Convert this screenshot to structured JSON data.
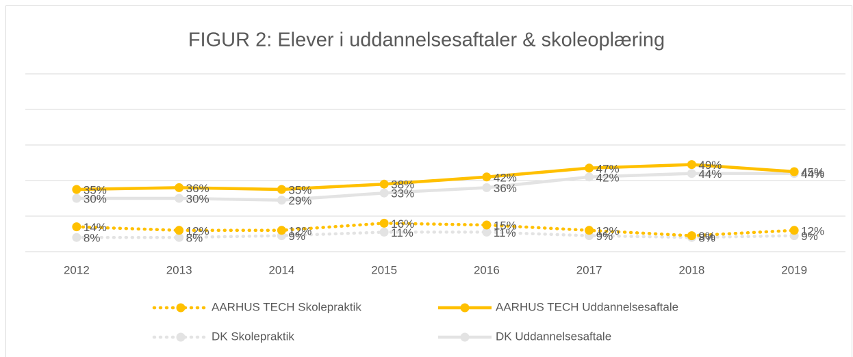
{
  "chart_data": {
    "type": "line",
    "title": "FIGUR 2: Elever i uddannelsesaftaler & skoleoplæring",
    "categories": [
      "2012",
      "2013",
      "2014",
      "2015",
      "2016",
      "2017",
      "2018",
      "2019"
    ],
    "ylim": [
      0,
      100
    ],
    "yticks": [
      0,
      20,
      40,
      60,
      80,
      100
    ],
    "grid": true,
    "series": [
      {
        "name": "AARHUS TECH Skolepraktik",
        "color": "#FFC000",
        "style": "dotted",
        "values": [
          14,
          12,
          12,
          16,
          15,
          12,
          9,
          12
        ],
        "value_labels": [
          "14%",
          "12%",
          "12%",
          "16%",
          "15%",
          "12%",
          "9%",
          "12%"
        ]
      },
      {
        "name": "AARHUS TECH Uddannelsesaftale",
        "color": "#FFC000",
        "style": "solid",
        "values": [
          35,
          36,
          35,
          38,
          42,
          47,
          49,
          45
        ],
        "value_labels": [
          "35%",
          "36%",
          "35%",
          "38%",
          "42%",
          "47%",
          "49%",
          "45%"
        ]
      },
      {
        "name": "DK Skolepraktik",
        "color": "#E3E3E3",
        "style": "dotted",
        "values": [
          8,
          8,
          9,
          11,
          11,
          9,
          8,
          9
        ],
        "value_labels": [
          "8%",
          "8%",
          "9%",
          "11%",
          "11%",
          "9%",
          "8%",
          "9%"
        ]
      },
      {
        "name": "DK Uddannelsesaftale",
        "color": "#E3E3E3",
        "style": "solid",
        "values": [
          30,
          30,
          29,
          33,
          36,
          42,
          44,
          44
        ],
        "value_labels": [
          "30%",
          "30%",
          "29%",
          "33%",
          "36%",
          "42%",
          "44%",
          "44%"
        ]
      }
    ]
  }
}
